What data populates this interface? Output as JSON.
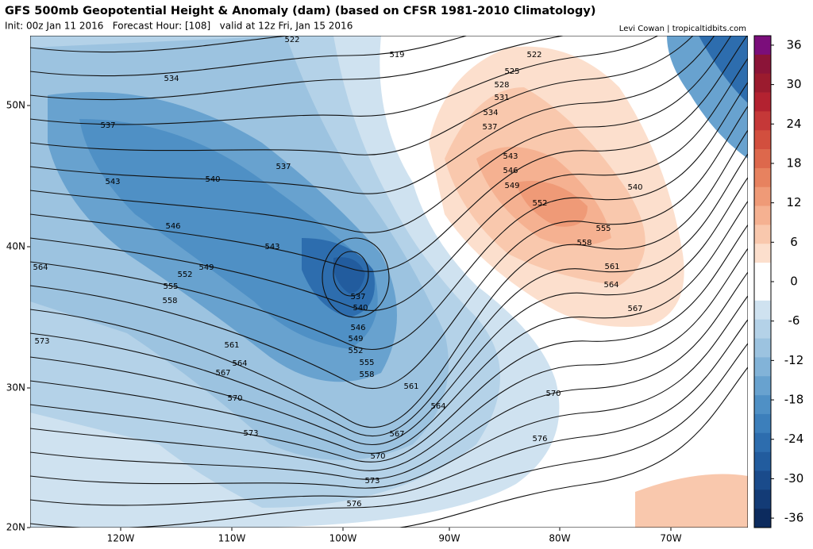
{
  "header": {
    "title": "GFS 500mb Geopotential Height & Anomaly (dam) (based on CFSR 1981-2010 Climatology)",
    "subtitle": "Init: 00z Jan 11 2016   Forecast Hour: [108]   valid at 12z Fri, Jan 15 2016",
    "credit": "Levi Cowan | tropicaltidbits.com"
  },
  "map": {
    "lon_labels": [
      "120W",
      "110W",
      "100W",
      "90W",
      "80W",
      "70W"
    ],
    "lat_labels": [
      "50N",
      "40N",
      "30N",
      "20N"
    ],
    "contour_labels": [
      "522",
      "519",
      "522",
      "525",
      "528",
      "531",
      "534",
      "534",
      "537",
      "537",
      "537",
      "543",
      "546",
      "549",
      "552",
      "555",
      "558",
      "561",
      "564",
      "567",
      "540",
      "543",
      "540",
      "546",
      "543",
      "549",
      "552",
      "555",
      "558",
      "564",
      "537",
      "540",
      "546",
      "549",
      "552",
      "555",
      "558",
      "561",
      "561",
      "564",
      "567",
      "564",
      "567",
      "570",
      "573",
      "576",
      "570",
      "573",
      "570",
      "576",
      "573"
    ]
  },
  "colorbar": {
    "ticks": [
      36,
      30,
      24,
      18,
      12,
      6,
      0,
      -6,
      -12,
      -18,
      -24,
      -30,
      -36
    ],
    "colors": [
      "#7b0e7b",
      "#8b1438",
      "#9b1b2e",
      "#b32230",
      "#c53838",
      "#d24f3e",
      "#dd684c",
      "#e7825f",
      "#ef9a77",
      "#f5b191",
      "#f9c8ad",
      "#fcdfcd",
      "#ffffff",
      "#ffffff",
      "#cfe2f0",
      "#b4d2e8",
      "#9cc3e0",
      "#82b3d8",
      "#68a2cf",
      "#4f90c5",
      "#3c7fbb",
      "#2d6dae",
      "#225c9e",
      "#1a4b8b",
      "#133b76",
      "#0c2b5e"
    ]
  }
}
